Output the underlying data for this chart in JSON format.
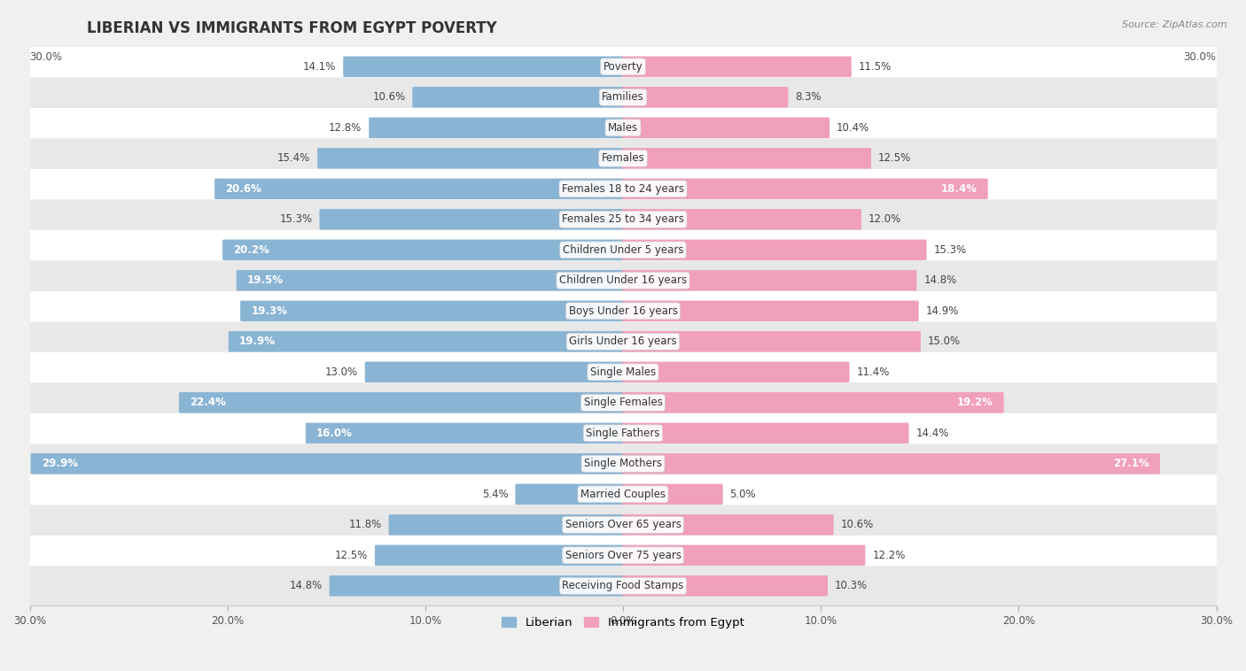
{
  "title": "LIBERIAN VS IMMIGRANTS FROM EGYPT POVERTY",
  "source": "Source: ZipAtlas.com",
  "categories": [
    "Poverty",
    "Families",
    "Males",
    "Females",
    "Females 18 to 24 years",
    "Females 25 to 34 years",
    "Children Under 5 years",
    "Children Under 16 years",
    "Boys Under 16 years",
    "Girls Under 16 years",
    "Single Males",
    "Single Females",
    "Single Fathers",
    "Single Mothers",
    "Married Couples",
    "Seniors Over 65 years",
    "Seniors Over 75 years",
    "Receiving Food Stamps"
  ],
  "liberian": [
    14.1,
    10.6,
    12.8,
    15.4,
    20.6,
    15.3,
    20.2,
    19.5,
    19.3,
    19.9,
    13.0,
    22.4,
    16.0,
    29.9,
    5.4,
    11.8,
    12.5,
    14.8
  ],
  "egypt": [
    11.5,
    8.3,
    10.4,
    12.5,
    18.4,
    12.0,
    15.3,
    14.8,
    14.9,
    15.0,
    11.4,
    19.2,
    14.4,
    27.1,
    5.0,
    10.6,
    12.2,
    10.3
  ],
  "liberian_color": "#8ab4d4",
  "egypt_color": "#f0a0b8",
  "bar_height": 0.58,
  "xlim": 30.0,
  "background_color": "#f0f0f0",
  "row_color_light": "#ffffff",
  "row_color_dark": "#e8e8e8",
  "title_fontsize": 12,
  "label_fontsize": 8.5,
  "value_fontsize": 8.5,
  "legend_fontsize": 9.5,
  "inside_threshold": 16.0
}
